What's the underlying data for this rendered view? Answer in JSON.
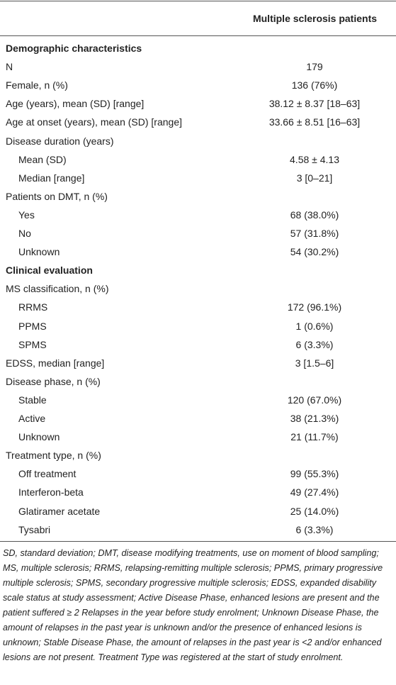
{
  "table": {
    "column": "Multiple sclerosis patients",
    "sections": [
      {
        "title": "Demographic characteristics",
        "rows": [
          {
            "label": "N",
            "value": "179"
          },
          {
            "label": "Female, n (%)",
            "value": "136 (76%)"
          },
          {
            "label": "Age (years), mean (SD) [range]",
            "value": "38.12 ± 8.37 [18–63]"
          },
          {
            "label": "Age at onset (years), mean (SD) [range]",
            "value": "33.66 ± 8.51 [16–63]"
          },
          {
            "label": "Disease duration (years)",
            "items": [
              {
                "label": "Mean (SD)",
                "value": "4.58 ± 4.13"
              },
              {
                "label": "Median [range]",
                "value": "3 [0–21]"
              }
            ]
          },
          {
            "label": "Patients on DMT, n (%)",
            "items": [
              {
                "label": "Yes",
                "value": "68 (38.0%)"
              },
              {
                "label": "No",
                "value": "57 (31.8%)"
              },
              {
                "label": "Unknown",
                "value": "54 (30.2%)"
              }
            ]
          }
        ]
      },
      {
        "title": "Clinical evaluation",
        "rows": [
          {
            "label": "MS classification, n (%)",
            "items": [
              {
                "label": "RRMS",
                "value": "172 (96.1%)"
              },
              {
                "label": "PPMS",
                "value": "1 (0.6%)"
              },
              {
                "label": "SPMS",
                "value": "6 (3.3%)"
              }
            ]
          },
          {
            "label": "EDSS, median [range]",
            "value": "3 [1.5–6]"
          },
          {
            "label": "Disease phase, n (%)",
            "items": [
              {
                "label": "Stable",
                "value": "120 (67.0%)"
              },
              {
                "label": "Active",
                "value": "38 (21.3%)"
              },
              {
                "label": "Unknown",
                "value": "21 (11.7%)"
              }
            ]
          },
          {
            "label": "Treatment type, n (%)",
            "items": [
              {
                "label": "Off treatment",
                "value": "99 (55.3%)"
              },
              {
                "label": "Interferon-beta",
                "value": "49 (27.4%)"
              },
              {
                "label": "Glatiramer acetate",
                "value": "25 (14.0%)"
              },
              {
                "label": "Tysabri",
                "value": "6 (3.3%)"
              }
            ]
          }
        ]
      }
    ],
    "footnote": "SD, standard deviation; DMT, disease modifying treatments, use on moment of blood sampling; MS, multiple sclerosis; RRMS, relapsing-remitting multiple sclerosis; PPMS, primary progressive multiple sclerosis; SPMS, secondary progressive multiple sclerosis; EDSS, expanded disability scale status at study assessment; Active Disease Phase, enhanced lesions are present and the patient suffered ≥ 2 Relapses in the year before study enrolment; Unknown Disease Phase, the amount of relapses in the past year is unknown and/or the presence of enhanced lesions is unknown; Stable Disease Phase, the amount of relapses in the past year is <2 and/or enhanced lesions are not present. Treatment Type was registered at the start of study enrolment."
  }
}
